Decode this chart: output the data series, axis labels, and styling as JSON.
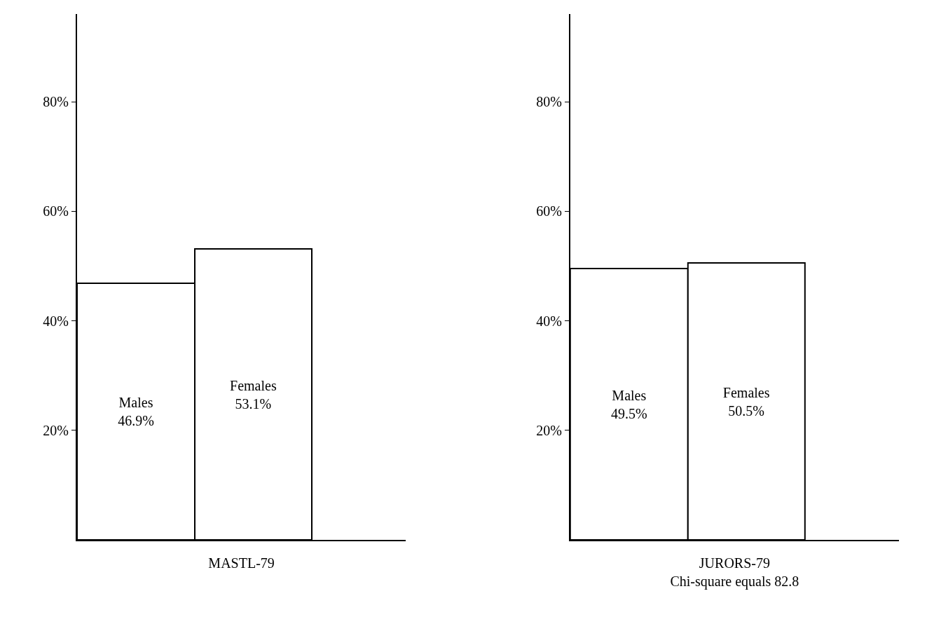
{
  "chart_data": [
    {
      "type": "bar",
      "xlabel": "MASTL-79",
      "categories": [
        "Males",
        "Females"
      ],
      "values": [
        46.9,
        53.1
      ],
      "value_labels": [
        "46.9%",
        "53.1%"
      ],
      "color": "#ffffff",
      "ylim": [
        0,
        96
      ],
      "yticks": [
        {
          "value": 20,
          "label": "20%"
        },
        {
          "value": 40,
          "label": "40%"
        },
        {
          "value": 60,
          "label": "60%"
        },
        {
          "value": 80,
          "label": "80%"
        }
      ],
      "tick_labels": "y"
    },
    {
      "type": "bar",
      "xlabel": "JURORS-79",
      "annotations": [
        "Chi-square equals 82.8"
      ],
      "categories": [
        "Males",
        "Females"
      ],
      "values": [
        49.5,
        50.5
      ],
      "value_labels": [
        "49.5%",
        "50.5%"
      ],
      "color": "#ffffff",
      "ylim": [
        0,
        96
      ],
      "yticks": [
        {
          "value": 20,
          "label": "20%"
        },
        {
          "value": 40,
          "label": "40%"
        },
        {
          "value": 60,
          "label": "60%"
        },
        {
          "value": 80,
          "label": "80%"
        }
      ],
      "tick_labels": "y"
    }
  ]
}
